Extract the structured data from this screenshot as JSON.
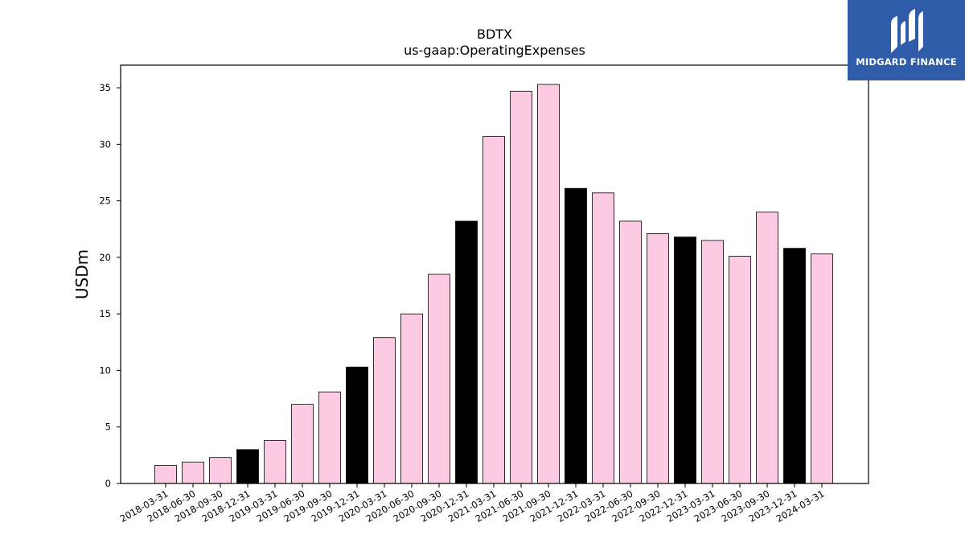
{
  "chart_data": {
    "type": "bar",
    "title": "BDTX",
    "subtitle": "us-gaap:OperatingExpenses",
    "xlabel": "",
    "ylabel": "USDm",
    "ylim": [
      0,
      37
    ],
    "yticks": [
      0,
      5,
      10,
      15,
      20,
      25,
      30,
      35
    ],
    "grid": false,
    "categories": [
      "2018-03-31",
      "2018-06-30",
      "2018-09-30",
      "2018-12-31",
      "2019-03-31",
      "2019-06-30",
      "2019-09-30",
      "2019-12-31",
      "2020-03-31",
      "2020-06-30",
      "2020-09-30",
      "2020-12-31",
      "2021-03-31",
      "2021-06-30",
      "2021-09-30",
      "2021-12-31",
      "2022-03-31",
      "2022-06-30",
      "2022-09-30",
      "2022-12-31",
      "2023-03-31",
      "2023-06-30",
      "2023-09-30",
      "2023-12-31",
      "2024-03-31"
    ],
    "values": [
      1.6,
      1.9,
      2.3,
      3.0,
      3.8,
      7.0,
      8.1,
      10.3,
      12.9,
      15.0,
      18.5,
      23.2,
      30.7,
      34.7,
      35.3,
      26.1,
      25.7,
      23.2,
      22.1,
      21.8,
      21.5,
      20.1,
      24.0,
      20.8,
      20.3
    ],
    "colors": {
      "quarter": "#fccbe3",
      "year_end": "#000000",
      "edge": "#000000"
    }
  },
  "logo": {
    "text": "MIDGARD FINANCE",
    "background": "#2f5ca8"
  }
}
